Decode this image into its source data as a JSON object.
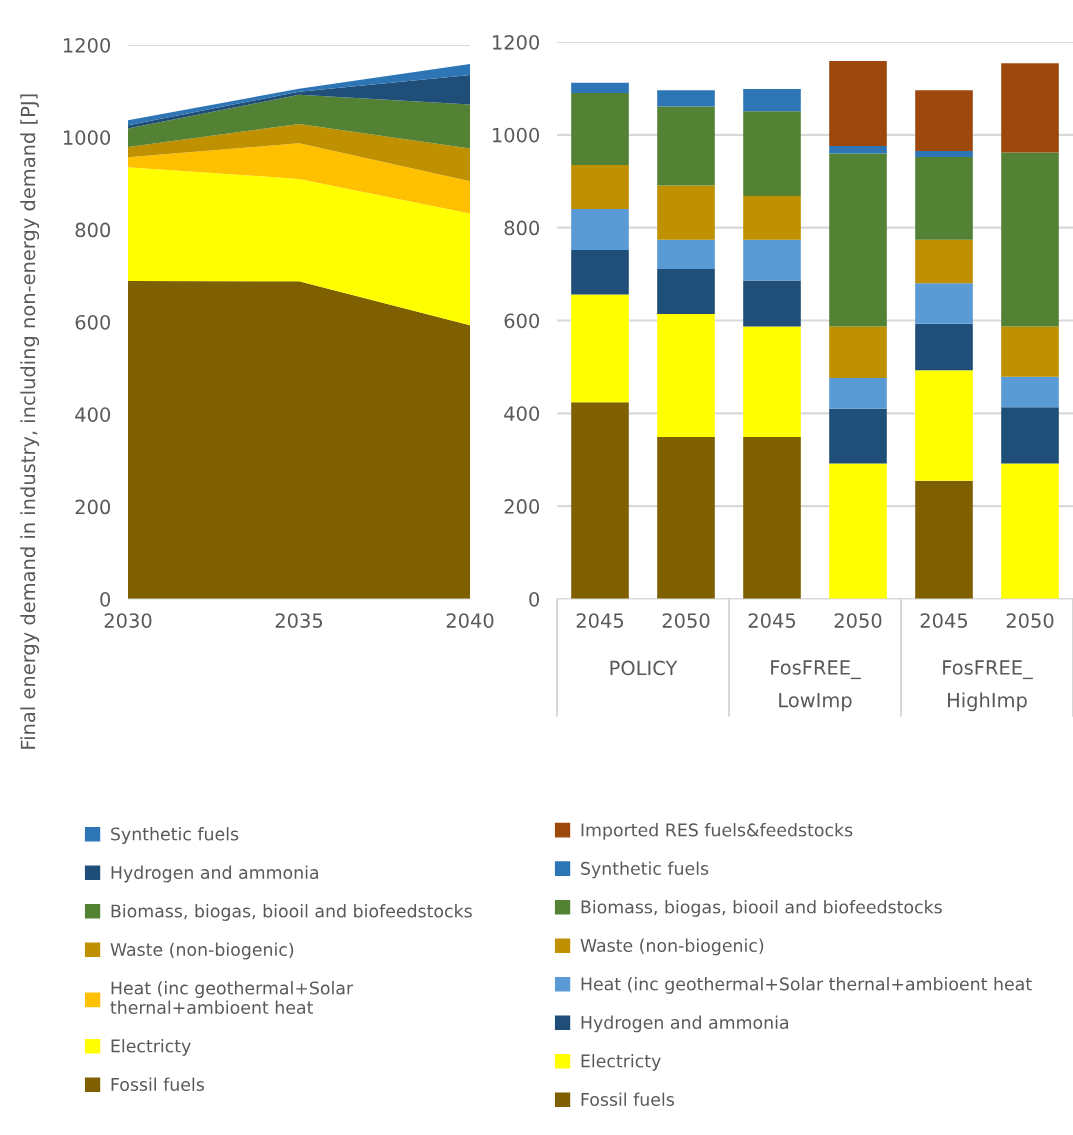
{
  "chart_data": [
    {
      "type": "area",
      "stacked": true,
      "ylabel": "Final energy demand in industry, including non-energy demand [PJ]",
      "x": [
        2030,
        2035,
        2040
      ],
      "xlim": [
        2030,
        2040
      ],
      "xticks": [
        2030,
        2035,
        2040
      ],
      "ylim": [
        0,
        1200
      ],
      "yticks": [
        0,
        200,
        400,
        600,
        800,
        1000,
        1200
      ],
      "grid": "y",
      "legend": "bottom",
      "series": [
        {
          "name": "Fossil fuels",
          "color": "#7f6000",
          "values": [
            689,
            688,
            593
          ]
        },
        {
          "name": "Electricty",
          "color": "#ffff00",
          "values": [
            246,
            222,
            242
          ]
        },
        {
          "name": "Heat (inc geothermal+Solar\nthernal+ambioent heat",
          "color": "#ffc000",
          "values": [
            22,
            77,
            70
          ]
        },
        {
          "name": "Waste (non-biogenic)",
          "color": "#bf9000",
          "values": [
            22,
            42,
            71
          ]
        },
        {
          "name": "Biomass, biogas, biooil and biofeedstocks",
          "color": "#548235",
          "values": [
            40,
            63,
            95
          ]
        },
        {
          "name": "Hydrogen and ammonia",
          "color": "#1f4e79",
          "values": [
            7,
            7,
            64
          ]
        },
        {
          "name": "Synthetic fuels",
          "color": "#2e75b6",
          "values": [
            11,
            6,
            24
          ]
        }
      ]
    },
    {
      "type": "bar",
      "stacked": true,
      "categories": [
        "2045",
        "2050",
        "2045",
        "2050",
        "2045",
        "2050"
      ],
      "annotations": [
        "POLICY",
        "FosFREE_\nLowImp",
        "FosFREE_\nHighImp"
      ],
      "ylim": [
        0,
        1200
      ],
      "yticks": [
        0,
        200,
        400,
        600,
        800,
        1000,
        1200
      ],
      "grid": "y",
      "legend": "bottom",
      "series": [
        {
          "name": "Fossil fuels",
          "color": "#7f6000",
          "values": [
            424,
            349,
            349,
            0,
            255,
            0
          ]
        },
        {
          "name": "Electricty",
          "color": "#ffff00",
          "values": [
            232,
            265,
            238,
            292,
            238,
            292
          ]
        },
        {
          "name": "Hydrogen and ammonia",
          "color": "#1f4e79",
          "values": [
            96,
            97,
            99,
            118,
            100,
            121
          ]
        },
        {
          "name": "Heat (inc geothermal+Solar thernal+ambioent heat",
          "color": "#5b9bd5",
          "values": [
            88,
            63,
            88,
            66,
            87,
            66
          ]
        },
        {
          "name": "Waste (non-biogenic)",
          "color": "#bf9000",
          "values": [
            95,
            117,
            94,
            111,
            94,
            108
          ]
        },
        {
          "name": "Biomass, biogas, biooil and biofeedstocks",
          "color": "#548235",
          "values": [
            155,
            170,
            183,
            373,
            178,
            375
          ]
        },
        {
          "name": "Synthetic fuels",
          "color": "#2e75b6",
          "values": [
            22,
            35,
            48,
            16,
            13,
            0
          ]
        },
        {
          "name": "Imported RES fuels&feedstocks",
          "color": "#9e480e",
          "values": [
            0,
            0,
            0,
            183,
            131,
            192
          ]
        }
      ]
    }
  ]
}
